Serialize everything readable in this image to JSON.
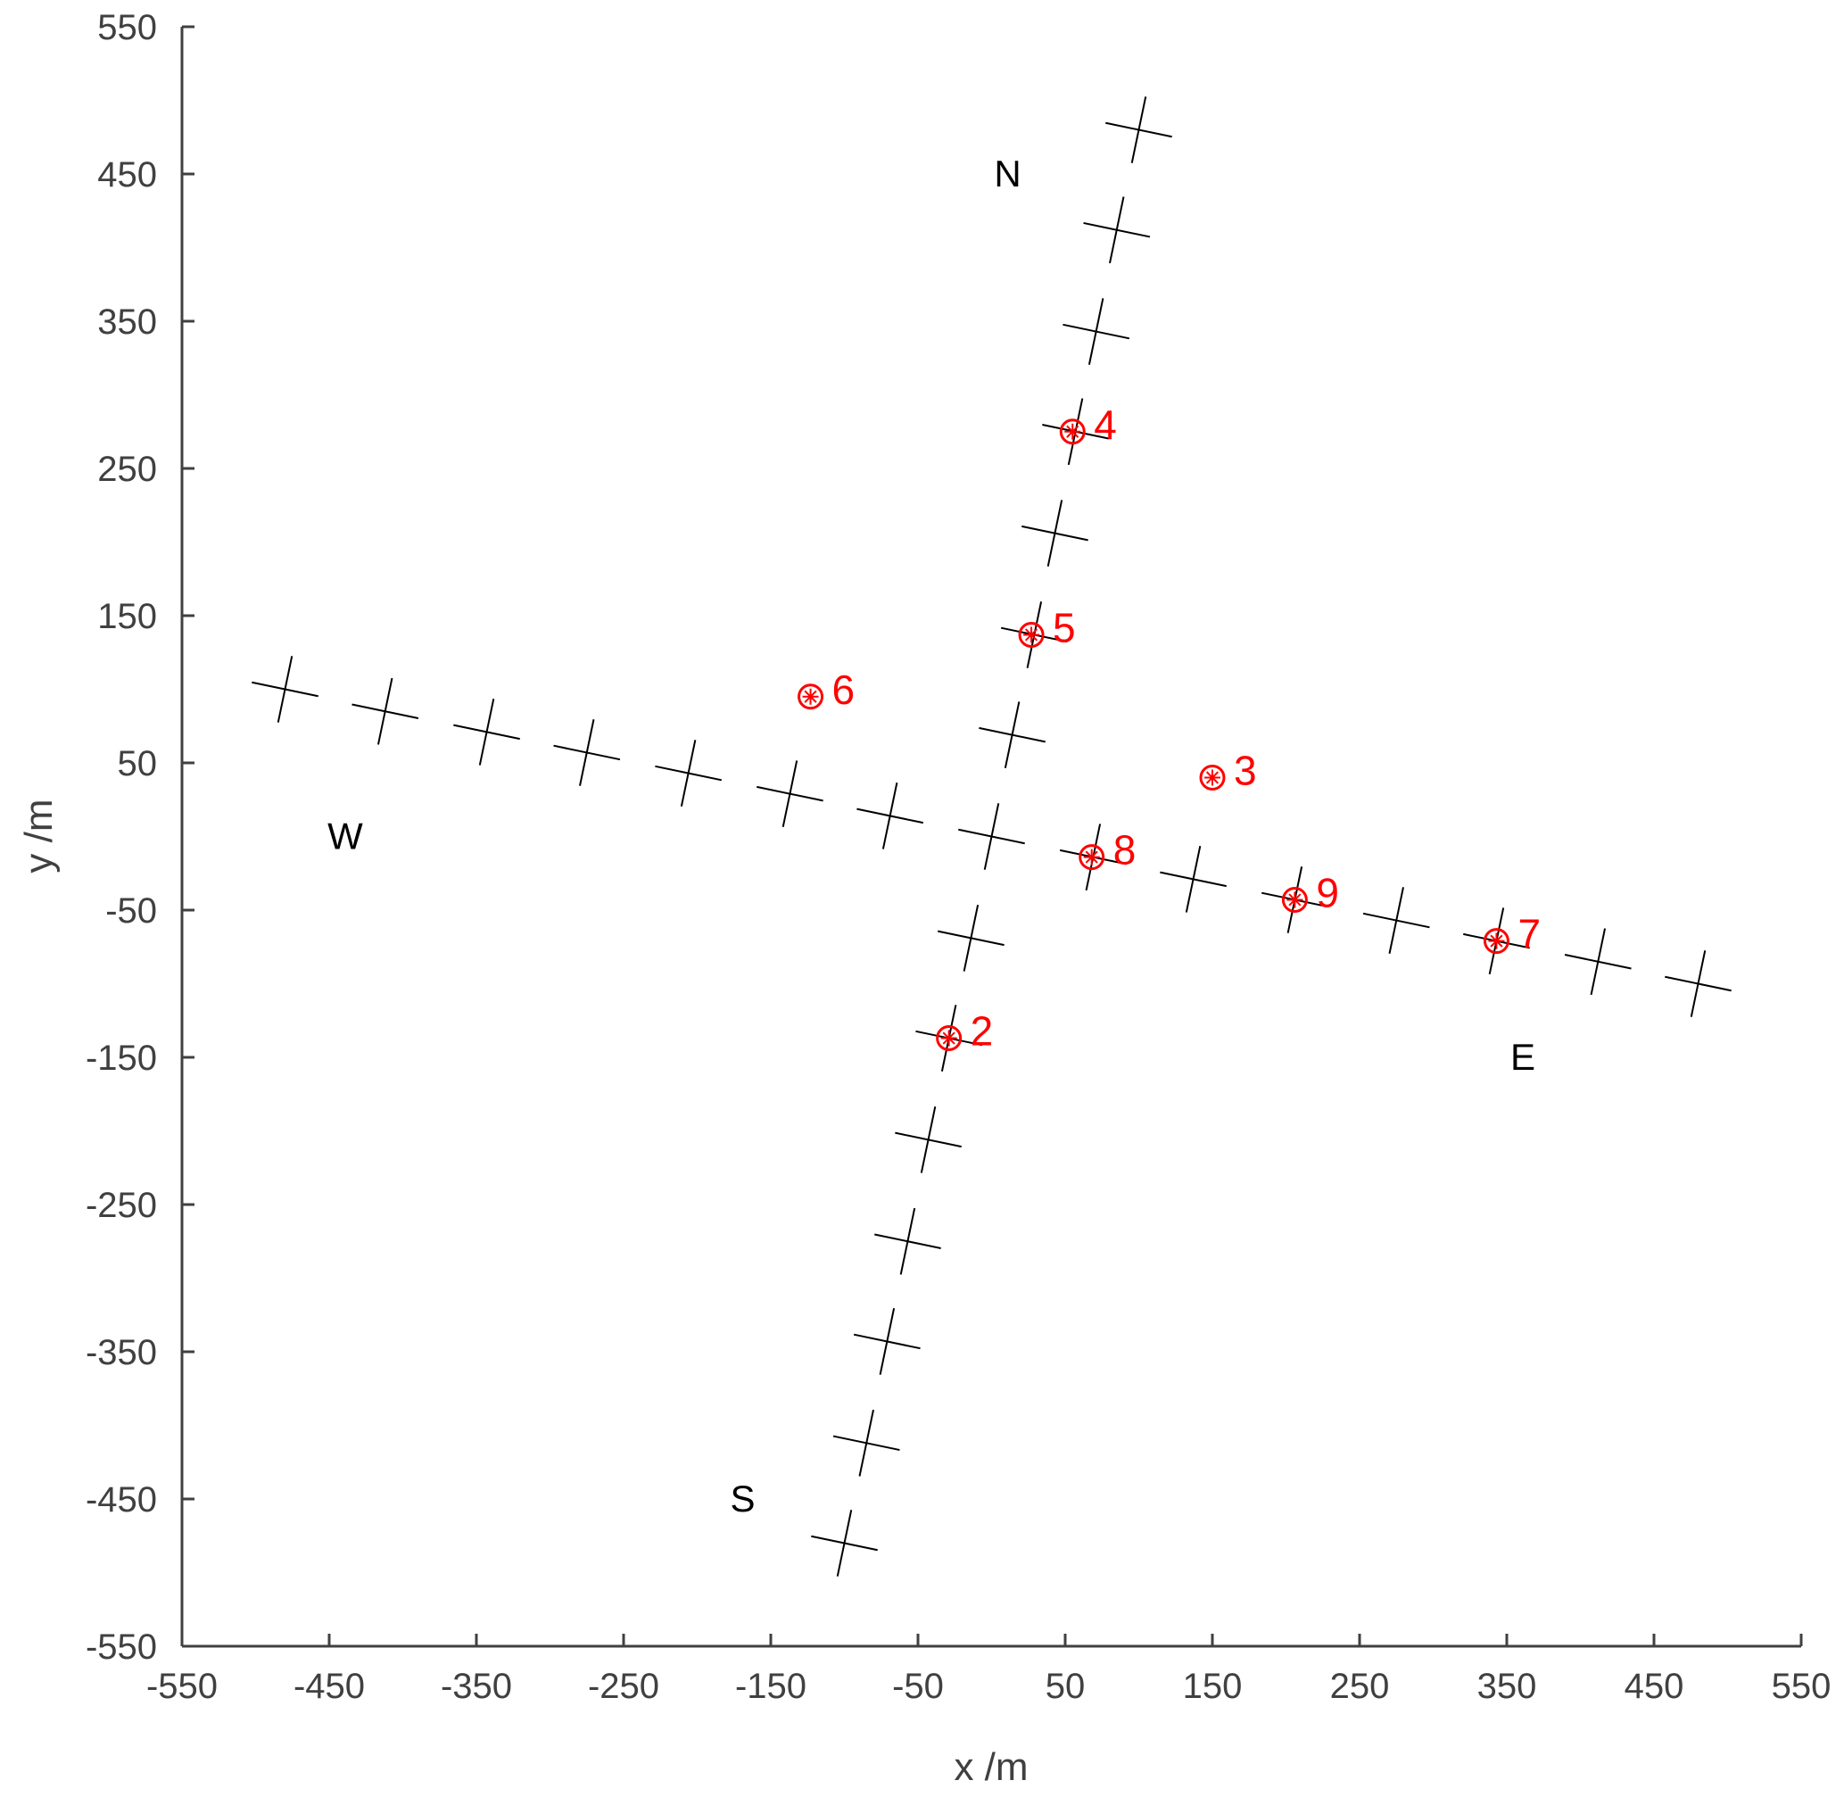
{
  "chart_data": {
    "type": "scatter",
    "title": "",
    "xlabel": "x /m",
    "ylabel": "y /m",
    "xlim": [
      -550,
      550
    ],
    "ylim": [
      -550,
      550
    ],
    "xticks": [
      -550,
      -450,
      -350,
      -250,
      -150,
      -50,
      50,
      150,
      250,
      350,
      450,
      550
    ],
    "yticks": [
      -550,
      -450,
      -350,
      -250,
      -150,
      -50,
      50,
      150,
      250,
      350,
      450,
      550
    ],
    "grid": false,
    "colors": {
      "axis": "#404040",
      "marker": "#000000",
      "station": "#ff0000"
    },
    "direction_labels": [
      {
        "text": "N",
        "x": 0,
        "y": 450
      },
      {
        "text": "S",
        "x": -180,
        "y": -450
      },
      {
        "text": "W",
        "x": -450,
        "y": 0
      },
      {
        "text": "E",
        "x": 350,
        "y": -150
      }
    ],
    "arm_markers": [
      {
        "x": 100,
        "y": 480
      },
      {
        "x": 85,
        "y": 412
      },
      {
        "x": 71,
        "y": 343
      },
      {
        "x": 57,
        "y": 275
      },
      {
        "x": 43,
        "y": 206
      },
      {
        "x": 29,
        "y": 137
      },
      {
        "x": 14,
        "y": 69
      },
      {
        "x": 0,
        "y": 0
      },
      {
        "x": -14,
        "y": -69
      },
      {
        "x": -29,
        "y": -137
      },
      {
        "x": -43,
        "y": -206
      },
      {
        "x": -57,
        "y": -275
      },
      {
        "x": -71,
        "y": -343
      },
      {
        "x": -85,
        "y": -412
      },
      {
        "x": -100,
        "y": -480
      },
      {
        "x": -480,
        "y": 100
      },
      {
        "x": -412,
        "y": 85
      },
      {
        "x": -343,
        "y": 71
      },
      {
        "x": -275,
        "y": 57
      },
      {
        "x": -206,
        "y": 43
      },
      {
        "x": -137,
        "y": 29
      },
      {
        "x": -69,
        "y": 14
      },
      {
        "x": 69,
        "y": -14
      },
      {
        "x": 137,
        "y": -29
      },
      {
        "x": 206,
        "y": -43
      },
      {
        "x": 275,
        "y": -57
      },
      {
        "x": 343,
        "y": -71
      },
      {
        "x": 412,
        "y": -85
      },
      {
        "x": 480,
        "y": -100
      }
    ],
    "stations": [
      {
        "label": "2",
        "x": -29,
        "y": -137
      },
      {
        "label": "3",
        "x": 150,
        "y": 40
      },
      {
        "label": "4",
        "x": 55,
        "y": 275
      },
      {
        "label": "5",
        "x": 27,
        "y": 137
      },
      {
        "label": "6",
        "x": -123,
        "y": 95
      },
      {
        "label": "7",
        "x": 343,
        "y": -71
      },
      {
        "label": "8",
        "x": 68,
        "y": -14
      },
      {
        "label": "9",
        "x": 206,
        "y": -43
      }
    ]
  }
}
